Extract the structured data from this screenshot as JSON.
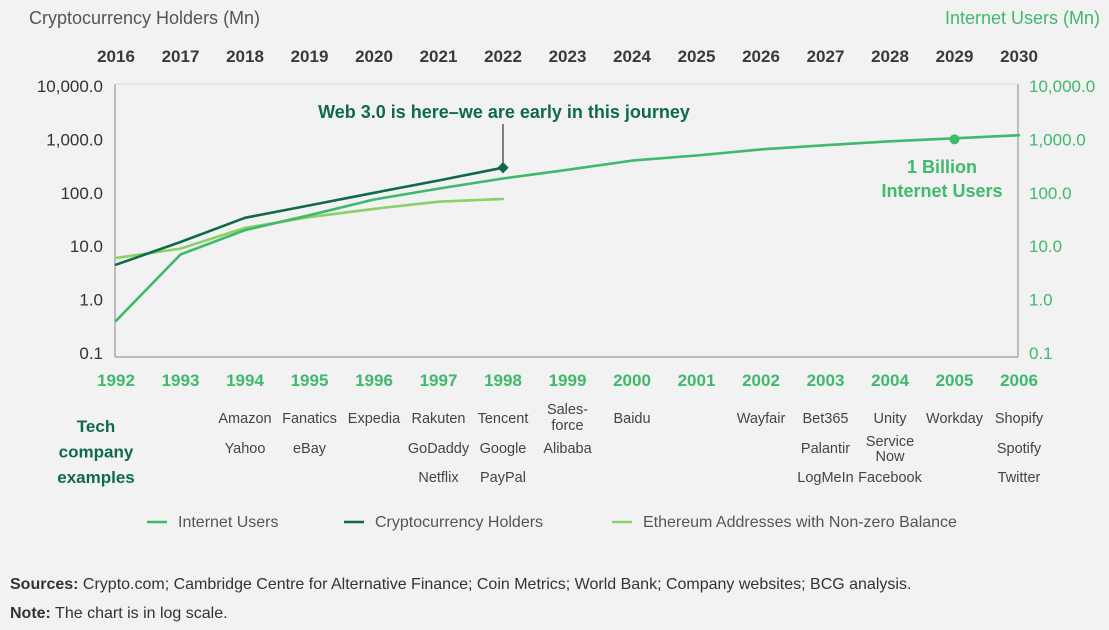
{
  "chart_data": {
    "type": "line",
    "left_axis_title": "Cryptocurrency Holders (Mn)",
    "right_axis_title": "Internet Users (Mn)",
    "scale": "log",
    "ylim": [
      0.1,
      10000
    ],
    "left_tick_labels": [
      "10,000.0",
      "1,000.0",
      "100.0",
      "10.0",
      "1.0",
      "0.1"
    ],
    "right_tick_labels": [
      "10,000.0",
      "1,000.0",
      "100.0",
      "10.0",
      "1.0",
      "0.1"
    ],
    "top_years": [
      "2016",
      "2017",
      "2018",
      "2019",
      "2020",
      "2021",
      "2022",
      "2023",
      "2024",
      "2025",
      "2026",
      "2027",
      "2028",
      "2029",
      "2030"
    ],
    "bottom_years": [
      "1992",
      "1993",
      "1994",
      "1995",
      "1996",
      "1997",
      "1998",
      "1999",
      "2000",
      "2001",
      "2002",
      "2003",
      "2004",
      "2005",
      "2006"
    ],
    "series": [
      {
        "name": "Internet Users",
        "color": "#3fb96c",
        "x": [
          "1992",
          "1993",
          "1994",
          "1995",
          "1996",
          "1997",
          "1998",
          "1999",
          "2000",
          "2001",
          "2002",
          "2003",
          "2004",
          "2005",
          "2006"
        ],
        "values": [
          0.4,
          7,
          20,
          38,
          75,
          120,
          185,
          270,
          400,
          500,
          650,
          780,
          920,
          1050,
          1200
        ]
      },
      {
        "name": "Cryptocurrency Holders",
        "color": "#0f6b47",
        "x": [
          "2016",
          "2017",
          "2018",
          "2019",
          "2020",
          "2021",
          "2022"
        ],
        "values": [
          4.5,
          12,
          34,
          58,
          100,
          170,
          295
        ]
      },
      {
        "name": "Ethereum Addresses with Non-zero Balance",
        "color": "#8cd067",
        "x": [
          "2016",
          "2017",
          "2018",
          "2019",
          "2020",
          "2021",
          "2022"
        ],
        "values": [
          6,
          9,
          22,
          35,
          50,
          68,
          77
        ]
      }
    ],
    "annotations": [
      {
        "text": "Web 3.0 is here–we are early in this journey",
        "series": "Cryptocurrency Holders",
        "x": "2022",
        "value": 295
      },
      {
        "lines": [
          "1 Billion",
          "Internet Users"
        ],
        "series": "Internet Users",
        "x": "2005",
        "value": 1000
      }
    ],
    "examples_label": [
      "Tech",
      "company",
      "examples"
    ],
    "company_examples": [
      {
        "year": "1994",
        "names": [
          "Amazon",
          "Yahoo"
        ]
      },
      {
        "year": "1995",
        "names": [
          "Fanatics",
          "eBay"
        ]
      },
      {
        "year": "1996",
        "names": [
          "Expedia"
        ]
      },
      {
        "year": "1997",
        "names": [
          "Rakuten",
          "GoDaddy",
          "Netflix"
        ]
      },
      {
        "year": "1998",
        "names": [
          "Tencent",
          "Google",
          "PayPal"
        ]
      },
      {
        "year": "1999",
        "names": [
          "Sales-\nforce",
          "Alibaba"
        ]
      },
      {
        "year": "2000",
        "names": [
          "Baidu"
        ]
      },
      {
        "year": "2002",
        "names": [
          "Wayfair"
        ]
      },
      {
        "year": "2003",
        "names": [
          "Bet365",
          "Palantir",
          "LogMeIn"
        ]
      },
      {
        "year": "2004",
        "names": [
          "Unity",
          "Service\nNow",
          "Facebook"
        ]
      },
      {
        "year": "2005",
        "names": [
          "Workday"
        ]
      },
      {
        "year": "2006",
        "names": [
          "Shopify",
          "Spotify",
          "Twitter"
        ]
      }
    ],
    "legend_position": "bottom"
  },
  "footer": {
    "sources_label": "Sources:",
    "sources_text": " Crypto.com; Cambridge Centre for Alternative Finance; Coin Metrics; World Bank; Company websites; BCG analysis.",
    "note_label": "Note:",
    "note_text": " The chart is in log scale."
  },
  "colors": {
    "internet": "#3fb96c",
    "crypto": "#0f6b47",
    "ethereum": "#8cd067",
    "axis": "#9a9a9a",
    "text": "#333333",
    "background": "#f2f2f2"
  }
}
